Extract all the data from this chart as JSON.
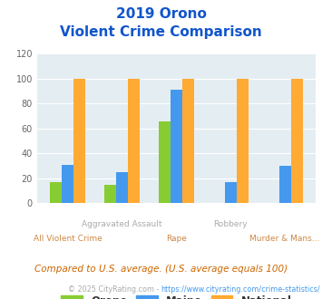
{
  "title_line1": "2019 Orono",
  "title_line2": "Violent Crime Comparison",
  "categories": [
    "All Violent Crime",
    "Aggravated Assault",
    "Rape",
    "Robbery",
    "Murder & Mans..."
  ],
  "orono": [
    17,
    15,
    66,
    0,
    0
  ],
  "maine": [
    31,
    25,
    91,
    17,
    30
  ],
  "national": [
    100,
    100,
    100,
    100,
    100
  ],
  "color_orono": "#88cc33",
  "color_maine": "#4499ee",
  "color_national": "#ffaa33",
  "color_bg_plot": "#e4eef2",
  "color_title": "#1155cc",
  "color_footnote": "#cc6600",
  "color_credit_gray": "#aaaaaa",
  "color_credit_blue": "#4499ee",
  "ylim": [
    0,
    120
  ],
  "yticks": [
    0,
    20,
    40,
    60,
    80,
    100,
    120
  ],
  "footnote": "Compared to U.S. average. (U.S. average equals 100)",
  "credit_prefix": "© 2025 CityRating.com - ",
  "credit_url": "https://www.cityrating.com/crime-statistics/",
  "xlabel_top": [
    "",
    "Aggravated Assault",
    "",
    "Robbery",
    ""
  ],
  "xlabel_bot": [
    "All Violent Crime",
    "",
    "Rape",
    "",
    "Murder & Mans..."
  ],
  "xlabel_top_color": "#aaaaaa",
  "xlabel_bot_color": "#cc8844"
}
